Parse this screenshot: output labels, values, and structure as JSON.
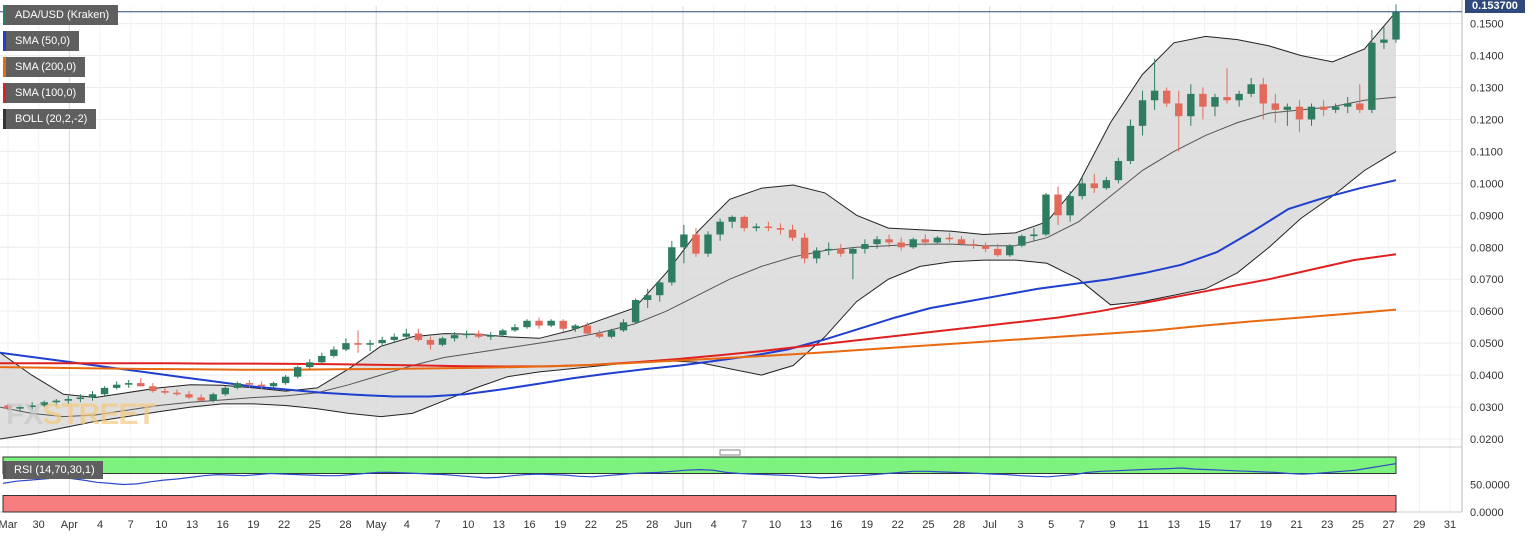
{
  "legend": {
    "symbol": "ADA/USD (Kraken)",
    "sma50": "SMA (50,0)",
    "sma200": "SMA (200,0)",
    "sma100": "SMA (100,0)",
    "boll": "BOLL (20,2,-2)",
    "rsi": "RSI (14,70,30,1)"
  },
  "last_price": "0.153700",
  "watermark": {
    "left": "FX",
    "right": "STREET"
  },
  "colors": {
    "up": "#2f7d61",
    "down": "#e26a5b",
    "sma50": "#1f3fcf",
    "sma100": "#e02020",
    "sma200": "#e86a10",
    "boll_fill": "#d9d9d9",
    "rsi_line": "#2f49c9",
    "rsi_overbought": "#7ef27e",
    "rsi_oversold": "#f67e7e",
    "price_badge": "#2f4a7a"
  },
  "chart_data": [
    {
      "type": "candlestick",
      "title": "ADA/USD (Kraken)",
      "x_tick_labels": [
        "Mar",
        "30",
        "Apr",
        "4",
        "7",
        "10",
        "13",
        "16",
        "19",
        "22",
        "25",
        "28",
        "May",
        "4",
        "7",
        "10",
        "13",
        "16",
        "19",
        "22",
        "25",
        "28",
        "Jun",
        "4",
        "7",
        "10",
        "13",
        "16",
        "19",
        "22",
        "25",
        "28",
        "Jul",
        "3",
        "5",
        "7",
        "9",
        "11",
        "13",
        "15",
        "17",
        "19",
        "21",
        "23",
        "25",
        "27",
        "29",
        "31"
      ],
      "y_ticks": [
        "0.1500",
        "0.1400",
        "0.1300",
        "0.1200",
        "0.1100",
        "0.1000",
        "0.0900",
        "0.0800",
        "0.0700",
        "0.0600",
        "0.0500",
        "0.0400",
        "0.0300",
        "0.0200"
      ],
      "ylim": [
        0.0175,
        0.1555
      ],
      "last_price": 0.1537,
      "ohlc": [
        [
          0.0305,
          0.031,
          0.029,
          0.0295
        ],
        [
          0.0295,
          0.0305,
          0.0285,
          0.03
        ],
        [
          0.03,
          0.0315,
          0.029,
          0.0305
        ],
        [
          0.0305,
          0.032,
          0.03,
          0.0315
        ],
        [
          0.0315,
          0.0325,
          0.0305,
          0.032
        ],
        [
          0.032,
          0.0335,
          0.031,
          0.0325
        ],
        [
          0.0325,
          0.034,
          0.0315,
          0.033
        ],
        [
          0.033,
          0.035,
          0.032,
          0.034
        ],
        [
          0.034,
          0.0365,
          0.0335,
          0.036
        ],
        [
          0.036,
          0.038,
          0.0355,
          0.037
        ],
        [
          0.037,
          0.0385,
          0.036,
          0.0375
        ],
        [
          0.0375,
          0.039,
          0.0365,
          0.0365
        ],
        [
          0.0365,
          0.0375,
          0.0345,
          0.035
        ],
        [
          0.035,
          0.036,
          0.034,
          0.0345
        ],
        [
          0.0345,
          0.0355,
          0.0335,
          0.034
        ],
        [
          0.034,
          0.035,
          0.0325,
          0.033
        ],
        [
          0.033,
          0.034,
          0.0315,
          0.032
        ],
        [
          0.032,
          0.0345,
          0.0315,
          0.034
        ],
        [
          0.034,
          0.0365,
          0.0335,
          0.036
        ],
        [
          0.036,
          0.038,
          0.0355,
          0.0375
        ],
        [
          0.0375,
          0.0385,
          0.036,
          0.037
        ],
        [
          0.037,
          0.038,
          0.0355,
          0.0365
        ],
        [
          0.0365,
          0.038,
          0.036,
          0.0375
        ],
        [
          0.0375,
          0.04,
          0.037,
          0.0395
        ],
        [
          0.0395,
          0.043,
          0.039,
          0.0425
        ],
        [
          0.0425,
          0.045,
          0.042,
          0.044
        ],
        [
          0.044,
          0.047,
          0.0435,
          0.046
        ],
        [
          0.046,
          0.049,
          0.0455,
          0.048
        ],
        [
          0.048,
          0.0515,
          0.0475,
          0.05
        ],
        [
          0.05,
          0.054,
          0.047,
          0.0495
        ],
        [
          0.0495,
          0.051,
          0.0475,
          0.05
        ],
        [
          0.05,
          0.052,
          0.049,
          0.051
        ],
        [
          0.051,
          0.053,
          0.05,
          0.052
        ],
        [
          0.052,
          0.0545,
          0.051,
          0.053
        ],
        [
          0.053,
          0.0545,
          0.0505,
          0.051
        ],
        [
          0.051,
          0.052,
          0.048,
          0.0495
        ],
        [
          0.0495,
          0.052,
          0.049,
          0.0515
        ],
        [
          0.0515,
          0.0535,
          0.0505,
          0.0525
        ],
        [
          0.0525,
          0.054,
          0.0515,
          0.053
        ],
        [
          0.053,
          0.054,
          0.0515,
          0.052
        ],
        [
          0.052,
          0.0535,
          0.051,
          0.0525
        ],
        [
          0.0525,
          0.0545,
          0.052,
          0.054
        ],
        [
          0.054,
          0.056,
          0.0535,
          0.055
        ],
        [
          0.055,
          0.0575,
          0.0545,
          0.057
        ],
        [
          0.057,
          0.058,
          0.0545,
          0.0555
        ],
        [
          0.0555,
          0.0575,
          0.055,
          0.057
        ],
        [
          0.057,
          0.0575,
          0.0535,
          0.0545
        ],
        [
          0.0545,
          0.056,
          0.0535,
          0.0555
        ],
        [
          0.0555,
          0.0565,
          0.0525,
          0.053
        ],
        [
          0.053,
          0.054,
          0.0515,
          0.052
        ],
        [
          0.052,
          0.0545,
          0.0515,
          0.054
        ],
        [
          0.054,
          0.0575,
          0.0535,
          0.0565
        ],
        [
          0.0565,
          0.064,
          0.056,
          0.0635
        ],
        [
          0.0635,
          0.067,
          0.061,
          0.065
        ],
        [
          0.065,
          0.07,
          0.063,
          0.069
        ],
        [
          0.069,
          0.082,
          0.068,
          0.08
        ],
        [
          0.08,
          0.087,
          0.075,
          0.084
        ],
        [
          0.084,
          0.086,
          0.077,
          0.078
        ],
        [
          0.078,
          0.085,
          0.077,
          0.084
        ],
        [
          0.084,
          0.089,
          0.082,
          0.088
        ],
        [
          0.088,
          0.09,
          0.086,
          0.0895
        ],
        [
          0.0895,
          0.09,
          0.085,
          0.086
        ],
        [
          0.086,
          0.0875,
          0.085,
          0.0865
        ],
        [
          0.0865,
          0.088,
          0.085,
          0.086
        ],
        [
          0.086,
          0.0875,
          0.084,
          0.0855
        ],
        [
          0.0855,
          0.087,
          0.082,
          0.083
        ],
        [
          0.083,
          0.0845,
          0.075,
          0.0765
        ],
        [
          0.0765,
          0.08,
          0.075,
          0.079
        ],
        [
          0.079,
          0.0815,
          0.0775,
          0.0795
        ],
        [
          0.0795,
          0.081,
          0.077,
          0.078
        ],
        [
          0.078,
          0.08,
          0.07,
          0.0795
        ],
        [
          0.0795,
          0.0825,
          0.078,
          0.081
        ],
        [
          0.081,
          0.0835,
          0.0795,
          0.0825
        ],
        [
          0.0825,
          0.084,
          0.08,
          0.0815
        ],
        [
          0.0815,
          0.083,
          0.079,
          0.08
        ],
        [
          0.08,
          0.083,
          0.0795,
          0.0825
        ],
        [
          0.0825,
          0.084,
          0.0805,
          0.0815
        ],
        [
          0.0815,
          0.0835,
          0.081,
          0.083
        ],
        [
          0.083,
          0.0845,
          0.0815,
          0.0825
        ],
        [
          0.0825,
          0.0835,
          0.0805,
          0.081
        ],
        [
          0.081,
          0.0825,
          0.0795,
          0.0805
        ],
        [
          0.0805,
          0.0815,
          0.0785,
          0.0795
        ],
        [
          0.0795,
          0.081,
          0.077,
          0.0775
        ],
        [
          0.0775,
          0.081,
          0.077,
          0.0805
        ],
        [
          0.0805,
          0.084,
          0.08,
          0.0835
        ],
        [
          0.0835,
          0.086,
          0.082,
          0.084
        ],
        [
          0.084,
          0.097,
          0.0835,
          0.0965
        ],
        [
          0.0965,
          0.099,
          0.087,
          0.09
        ],
        [
          0.09,
          0.0975,
          0.088,
          0.096
        ],
        [
          0.096,
          0.102,
          0.095,
          0.1
        ],
        [
          0.1,
          0.103,
          0.097,
          0.0985
        ],
        [
          0.0985,
          0.102,
          0.098,
          0.101
        ],
        [
          0.101,
          0.108,
          0.1,
          0.107
        ],
        [
          0.107,
          0.12,
          0.106,
          0.118
        ],
        [
          0.118,
          0.129,
          0.115,
          0.126
        ],
        [
          0.126,
          0.139,
          0.123,
          0.129
        ],
        [
          0.129,
          0.13,
          0.124,
          0.125
        ],
        [
          0.125,
          0.129,
          0.11,
          0.121
        ],
        [
          0.121,
          0.131,
          0.118,
          0.128
        ],
        [
          0.128,
          0.13,
          0.12,
          0.124
        ],
        [
          0.124,
          0.128,
          0.121,
          0.127
        ],
        [
          0.127,
          0.136,
          0.125,
          0.126
        ],
        [
          0.126,
          0.129,
          0.124,
          0.128
        ],
        [
          0.128,
          0.133,
          0.127,
          0.131
        ],
        [
          0.131,
          0.133,
          0.12,
          0.125
        ],
        [
          0.125,
          0.128,
          0.119,
          0.123
        ],
        [
          0.123,
          0.125,
          0.118,
          0.124
        ],
        [
          0.124,
          0.126,
          0.116,
          0.12
        ],
        [
          0.12,
          0.125,
          0.118,
          0.124
        ],
        [
          0.124,
          0.126,
          0.121,
          0.123
        ],
        [
          0.123,
          0.125,
          0.122,
          0.124
        ],
        [
          0.124,
          0.127,
          0.122,
          0.125
        ],
        [
          0.125,
          0.131,
          0.122,
          0.123
        ],
        [
          0.123,
          0.148,
          0.122,
          0.144
        ],
        [
          0.144,
          0.149,
          0.142,
          0.145
        ],
        [
          0.145,
          0.156,
          0.144,
          0.1537
        ]
      ],
      "series": [
        {
          "name": "SMA (50,0)",
          "values": [
            0.047,
            0.0455,
            0.044,
            0.0425,
            0.041,
            0.0395,
            0.038,
            0.0365,
            0.0355,
            0.0345,
            0.0338,
            0.0333,
            0.0333,
            0.034,
            0.0355,
            0.0372,
            0.039,
            0.0405,
            0.0418,
            0.043,
            0.0445,
            0.046,
            0.048,
            0.051,
            0.0545,
            0.058,
            0.061,
            0.063,
            0.065,
            0.067,
            0.0685,
            0.07,
            0.072,
            0.0745,
            0.0785,
            0.085,
            0.092,
            0.0955,
            0.0985,
            0.101
          ]
        },
        {
          "name": "SMA (100,0)",
          "values": [
            0.0437,
            0.0437,
            0.0437,
            0.0437,
            0.0437,
            0.0436,
            0.0436,
            0.0435,
            0.0434,
            0.0432,
            0.043,
            0.0428,
            0.0427,
            0.0428,
            0.0432,
            0.044,
            0.045,
            0.0462,
            0.0475,
            0.049,
            0.0505,
            0.052,
            0.0535,
            0.055,
            0.0565,
            0.058,
            0.06,
            0.0625,
            0.065,
            0.0675,
            0.07,
            0.073,
            0.076,
            0.0778
          ]
        },
        {
          "name": "SMA (200,0)",
          "values": [
            0.0425,
            0.0423,
            0.0421,
            0.0419,
            0.0418,
            0.0417,
            0.0417,
            0.0418,
            0.0419,
            0.0421,
            0.0423,
            0.0426,
            0.043,
            0.0437,
            0.0445,
            0.0453,
            0.0461,
            0.047,
            0.048,
            0.049,
            0.05,
            0.051,
            0.052,
            0.053,
            0.054,
            0.0555,
            0.0568,
            0.058,
            0.0592,
            0.0605
          ]
        }
      ],
      "bollinger": {
        "upper": [
          0.047,
          0.04,
          0.034,
          0.033,
          0.0345,
          0.036,
          0.037,
          0.0368,
          0.036,
          0.035,
          0.036,
          0.042,
          0.049,
          0.052,
          0.053,
          0.0528,
          0.052,
          0.0515,
          0.054,
          0.0575,
          0.061,
          0.072,
          0.085,
          0.095,
          0.0985,
          0.0995,
          0.097,
          0.09,
          0.086,
          0.0855,
          0.085,
          0.084,
          0.0845,
          0.088,
          0.1,
          0.119,
          0.134,
          0.144,
          0.146,
          0.145,
          0.143,
          0.14,
          0.138,
          0.142,
          0.1537
        ],
        "middle": [
          0.03,
          0.028,
          0.027,
          0.0275,
          0.029,
          0.0305,
          0.0315,
          0.0322,
          0.033,
          0.0335,
          0.0345,
          0.037,
          0.04,
          0.043,
          0.0455,
          0.047,
          0.0485,
          0.05,
          0.0515,
          0.0535,
          0.056,
          0.06,
          0.065,
          0.07,
          0.074,
          0.077,
          0.079,
          0.08,
          0.0805,
          0.081,
          0.081,
          0.0805,
          0.0805,
          0.083,
          0.088,
          0.096,
          0.104,
          0.11,
          0.115,
          0.119,
          0.122,
          0.123,
          0.124,
          0.126,
          0.127
        ],
        "lower": [
          0.02,
          0.0215,
          0.0235,
          0.0255,
          0.027,
          0.0285,
          0.03,
          0.031,
          0.031,
          0.0305,
          0.0295,
          0.028,
          0.027,
          0.028,
          0.032,
          0.036,
          0.0395,
          0.041,
          0.042,
          0.043,
          0.044,
          0.0445,
          0.044,
          0.042,
          0.04,
          0.043,
          0.052,
          0.063,
          0.07,
          0.074,
          0.0755,
          0.076,
          0.076,
          0.075,
          0.07,
          0.062,
          0.063,
          0.065,
          0.067,
          0.072,
          0.08,
          0.089,
          0.096,
          0.104,
          0.11
        ]
      },
      "grid": true
    },
    {
      "type": "line",
      "title": "RSI (14,70,30,1)",
      "y_ticks": [
        "50.0000",
        "0.0000"
      ],
      "ylim": [
        0,
        100
      ],
      "overbought": 70,
      "oversold": 30,
      "series": [
        {
          "name": "RSI (14,70,30,1)",
          "values": [
            52,
            56,
            58,
            60,
            62,
            61,
            58,
            54,
            52,
            50,
            51,
            55,
            58,
            60,
            63,
            66,
            68,
            67,
            66,
            68,
            70,
            69,
            68,
            67,
            66,
            66,
            68,
            70,
            72,
            72,
            71,
            70,
            69,
            68,
            66,
            64,
            62,
            63,
            66,
            68,
            69,
            68,
            67,
            65,
            64,
            66,
            68,
            70,
            71,
            72,
            74,
            76,
            77,
            76,
            72,
            70,
            69,
            68,
            67,
            66,
            64,
            62,
            63,
            65,
            66,
            68,
            70,
            72,
            74,
            74,
            73,
            72,
            71,
            70,
            69,
            68,
            66,
            65,
            64,
            66,
            68,
            72,
            74,
            75,
            76,
            77,
            78,
            79,
            80,
            78,
            77,
            76,
            75,
            74,
            73,
            72,
            70,
            69,
            70,
            72,
            74,
            76,
            80,
            84,
            88
          ]
        }
      ]
    }
  ]
}
